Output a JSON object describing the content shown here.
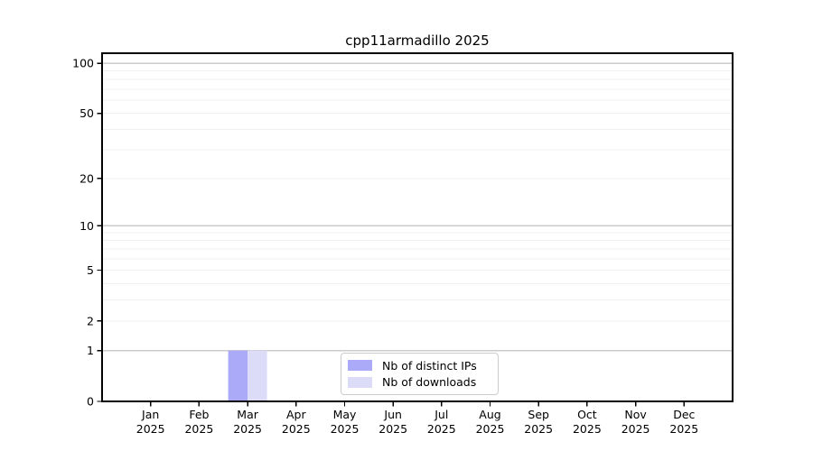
{
  "chart_data": {
    "type": "bar",
    "title": "cpp11armadillo 2025",
    "x_tick_labels": [
      [
        "Jan",
        "2025"
      ],
      [
        "Feb",
        "2025"
      ],
      [
        "Mar",
        "2025"
      ],
      [
        "Apr",
        "2025"
      ],
      [
        "May",
        "2025"
      ],
      [
        "Jun",
        "2025"
      ],
      [
        "Jul",
        "2025"
      ],
      [
        "Aug",
        "2025"
      ],
      [
        "Sep",
        "2025"
      ],
      [
        "Oct",
        "2025"
      ],
      [
        "Nov",
        "2025"
      ],
      [
        "Dec",
        "2025"
      ]
    ],
    "series": [
      {
        "name": "Nb of distinct IPs",
        "color": "#aaaaf8",
        "values": [
          0,
          0,
          1,
          0,
          0,
          0,
          0,
          0,
          0,
          0,
          0,
          0
        ]
      },
      {
        "name": "Nb of downloads",
        "color": "#dcdcf8",
        "values": [
          0,
          0,
          1,
          0,
          0,
          0,
          0,
          0,
          0,
          0,
          0,
          0
        ]
      }
    ],
    "yscale": "log1p",
    "ylim": [
      0,
      115
    ],
    "y_ticks": [
      {
        "value": 0,
        "label": "0"
      },
      {
        "value": 1,
        "label": "1"
      },
      {
        "value": 2,
        "label": "2"
      },
      {
        "value": 5,
        "label": "5"
      },
      {
        "value": 10,
        "label": "10"
      },
      {
        "value": 20,
        "label": "20"
      },
      {
        "value": 50,
        "label": "50"
      },
      {
        "value": 100,
        "label": "100"
      }
    ],
    "y_grid_major": [
      1,
      10,
      100
    ],
    "y_grid_minor": [
      2,
      3,
      4,
      5,
      6,
      7,
      8,
      9,
      20,
      30,
      40,
      50,
      60,
      70,
      80,
      90
    ],
    "grid": "horizontal",
    "legend_position": "lower center",
    "colors": {
      "axis": "#000000",
      "text": "#000000",
      "grid_major": "#cbcbcb",
      "grid_minor": "#f0f0f0",
      "legend_border": "#cccccc"
    }
  }
}
